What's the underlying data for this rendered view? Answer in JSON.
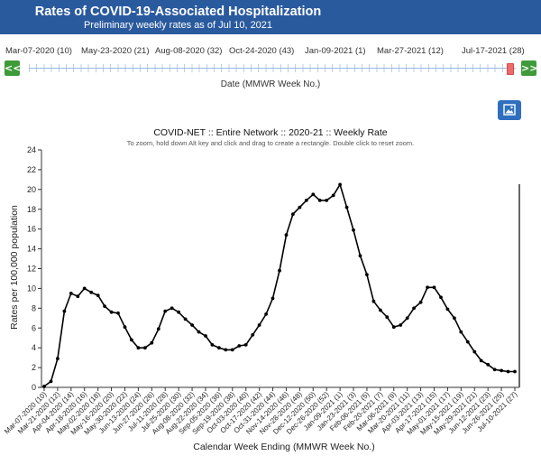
{
  "header": {
    "title": "Rates of COVID-19-Associated Hospitalization",
    "subtitle": "Preliminary weekly rates as of Jul 10, 2021"
  },
  "date_slider": {
    "labels": [
      "Mar-07-2020 (10)",
      "May-23-2020 (21)",
      "Aug-08-2020 (32)",
      "Oct-24-2020 (43)",
      "Jan-09-2021 (1)",
      "Mar-27-2021 (12)",
      "Jul-17-2021 (28)"
    ],
    "prev_label": "<<",
    "next_label": ">>",
    "caption": "Date (MMWR Week No.)"
  },
  "toolbar": {
    "image_button_icon": "image-icon"
  },
  "colors": {
    "header_bg": "#2a5a9e",
    "nav_button": "#3f9b3a",
    "slider_handle": "#ef6a6a",
    "image_button": "#2f6fbe",
    "line": "#000000"
  },
  "chart_data": {
    "type": "line",
    "title": "COVID-NET :: Entire Network :: 2020-21 :: Weekly Rate",
    "hint": "To zoom, hold down Alt key and click and drag to create a rectangle. Double click to reset zoom.",
    "xlabel": "Calendar Week Ending (MMWR Week No.)",
    "ylabel": "Rates per 100,000 population",
    "ylim": [
      0,
      24
    ],
    "yticks": [
      0,
      2,
      4,
      6,
      8,
      10,
      12,
      14,
      16,
      18,
      20,
      22,
      24
    ],
    "grid": false,
    "x_labels": [
      "Mar-07-2020 (10)",
      "Mar-21-2020 (12)",
      "Apr-04-2020 (14)",
      "Apr-18-2020 (16)",
      "May-02-2020 (18)",
      "May-16-2020 (20)",
      "May-30-2020 (22)",
      "Jun-13-2020 (24)",
      "Jun-27-2020 (26)",
      "Jul-11-2020 (28)",
      "Jul-25-2020 (30)",
      "Aug-08-2020 (32)",
      "Aug-22-2020 (34)",
      "Sep-05-2020 (36)",
      "Sep-19-2020 (38)",
      "Oct-03-2020 (40)",
      "Oct-17-2020 (42)",
      "Oct-31-2020 (44)",
      "Nov-14-2020 (46)",
      "Nov-28-2020 (48)",
      "Dec-12-2020 (50)",
      "Dec-26-2020 (52)",
      "Jan-09-2021 (1)",
      "Jan-23-2021 (3)",
      "Feb-06-2021 (5)",
      "Feb-20-2021 (7)",
      "Mar-06-2021 (9)",
      "Mar-20-2021 (11)",
      "Apr-03-2021 (13)",
      "Apr-17-2021 (15)",
      "May-01-2021 (17)",
      "May-15-2021 (19)",
      "May-29-2021 (21)",
      "Jun-12-2021 (23)",
      "Jun-26-2021 (25)",
      "Jul-10-2021 (27)"
    ],
    "series": [
      {
        "values": [
          0.1,
          0.6,
          2.9,
          7.7,
          9.5,
          9.2,
          10.0,
          9.6,
          9.3,
          8.2,
          7.6,
          7.5,
          6.1,
          4.8,
          4.0,
          4.0,
          4.5,
          5.9,
          7.7,
          8.0,
          7.6,
          6.9,
          6.3,
          5.6,
          5.2,
          4.3,
          4.0,
          3.8,
          3.8,
          4.2,
          4.3,
          5.3,
          6.3,
          7.4,
          9.0,
          11.8,
          15.4,
          17.5,
          18.2,
          18.9,
          19.5,
          18.9,
          18.9,
          19.4,
          20.5,
          18.2,
          15.9,
          13.3,
          11.4,
          8.7,
          7.8,
          7.1,
          6.1,
          6.3,
          7.0,
          8.0,
          8.6,
          10.1,
          10.1,
          9.1,
          7.9,
          7.0,
          5.6,
          4.6,
          3.6,
          2.7,
          2.3,
          1.8,
          1.7,
          1.6,
          1.6
        ]
      }
    ]
  }
}
